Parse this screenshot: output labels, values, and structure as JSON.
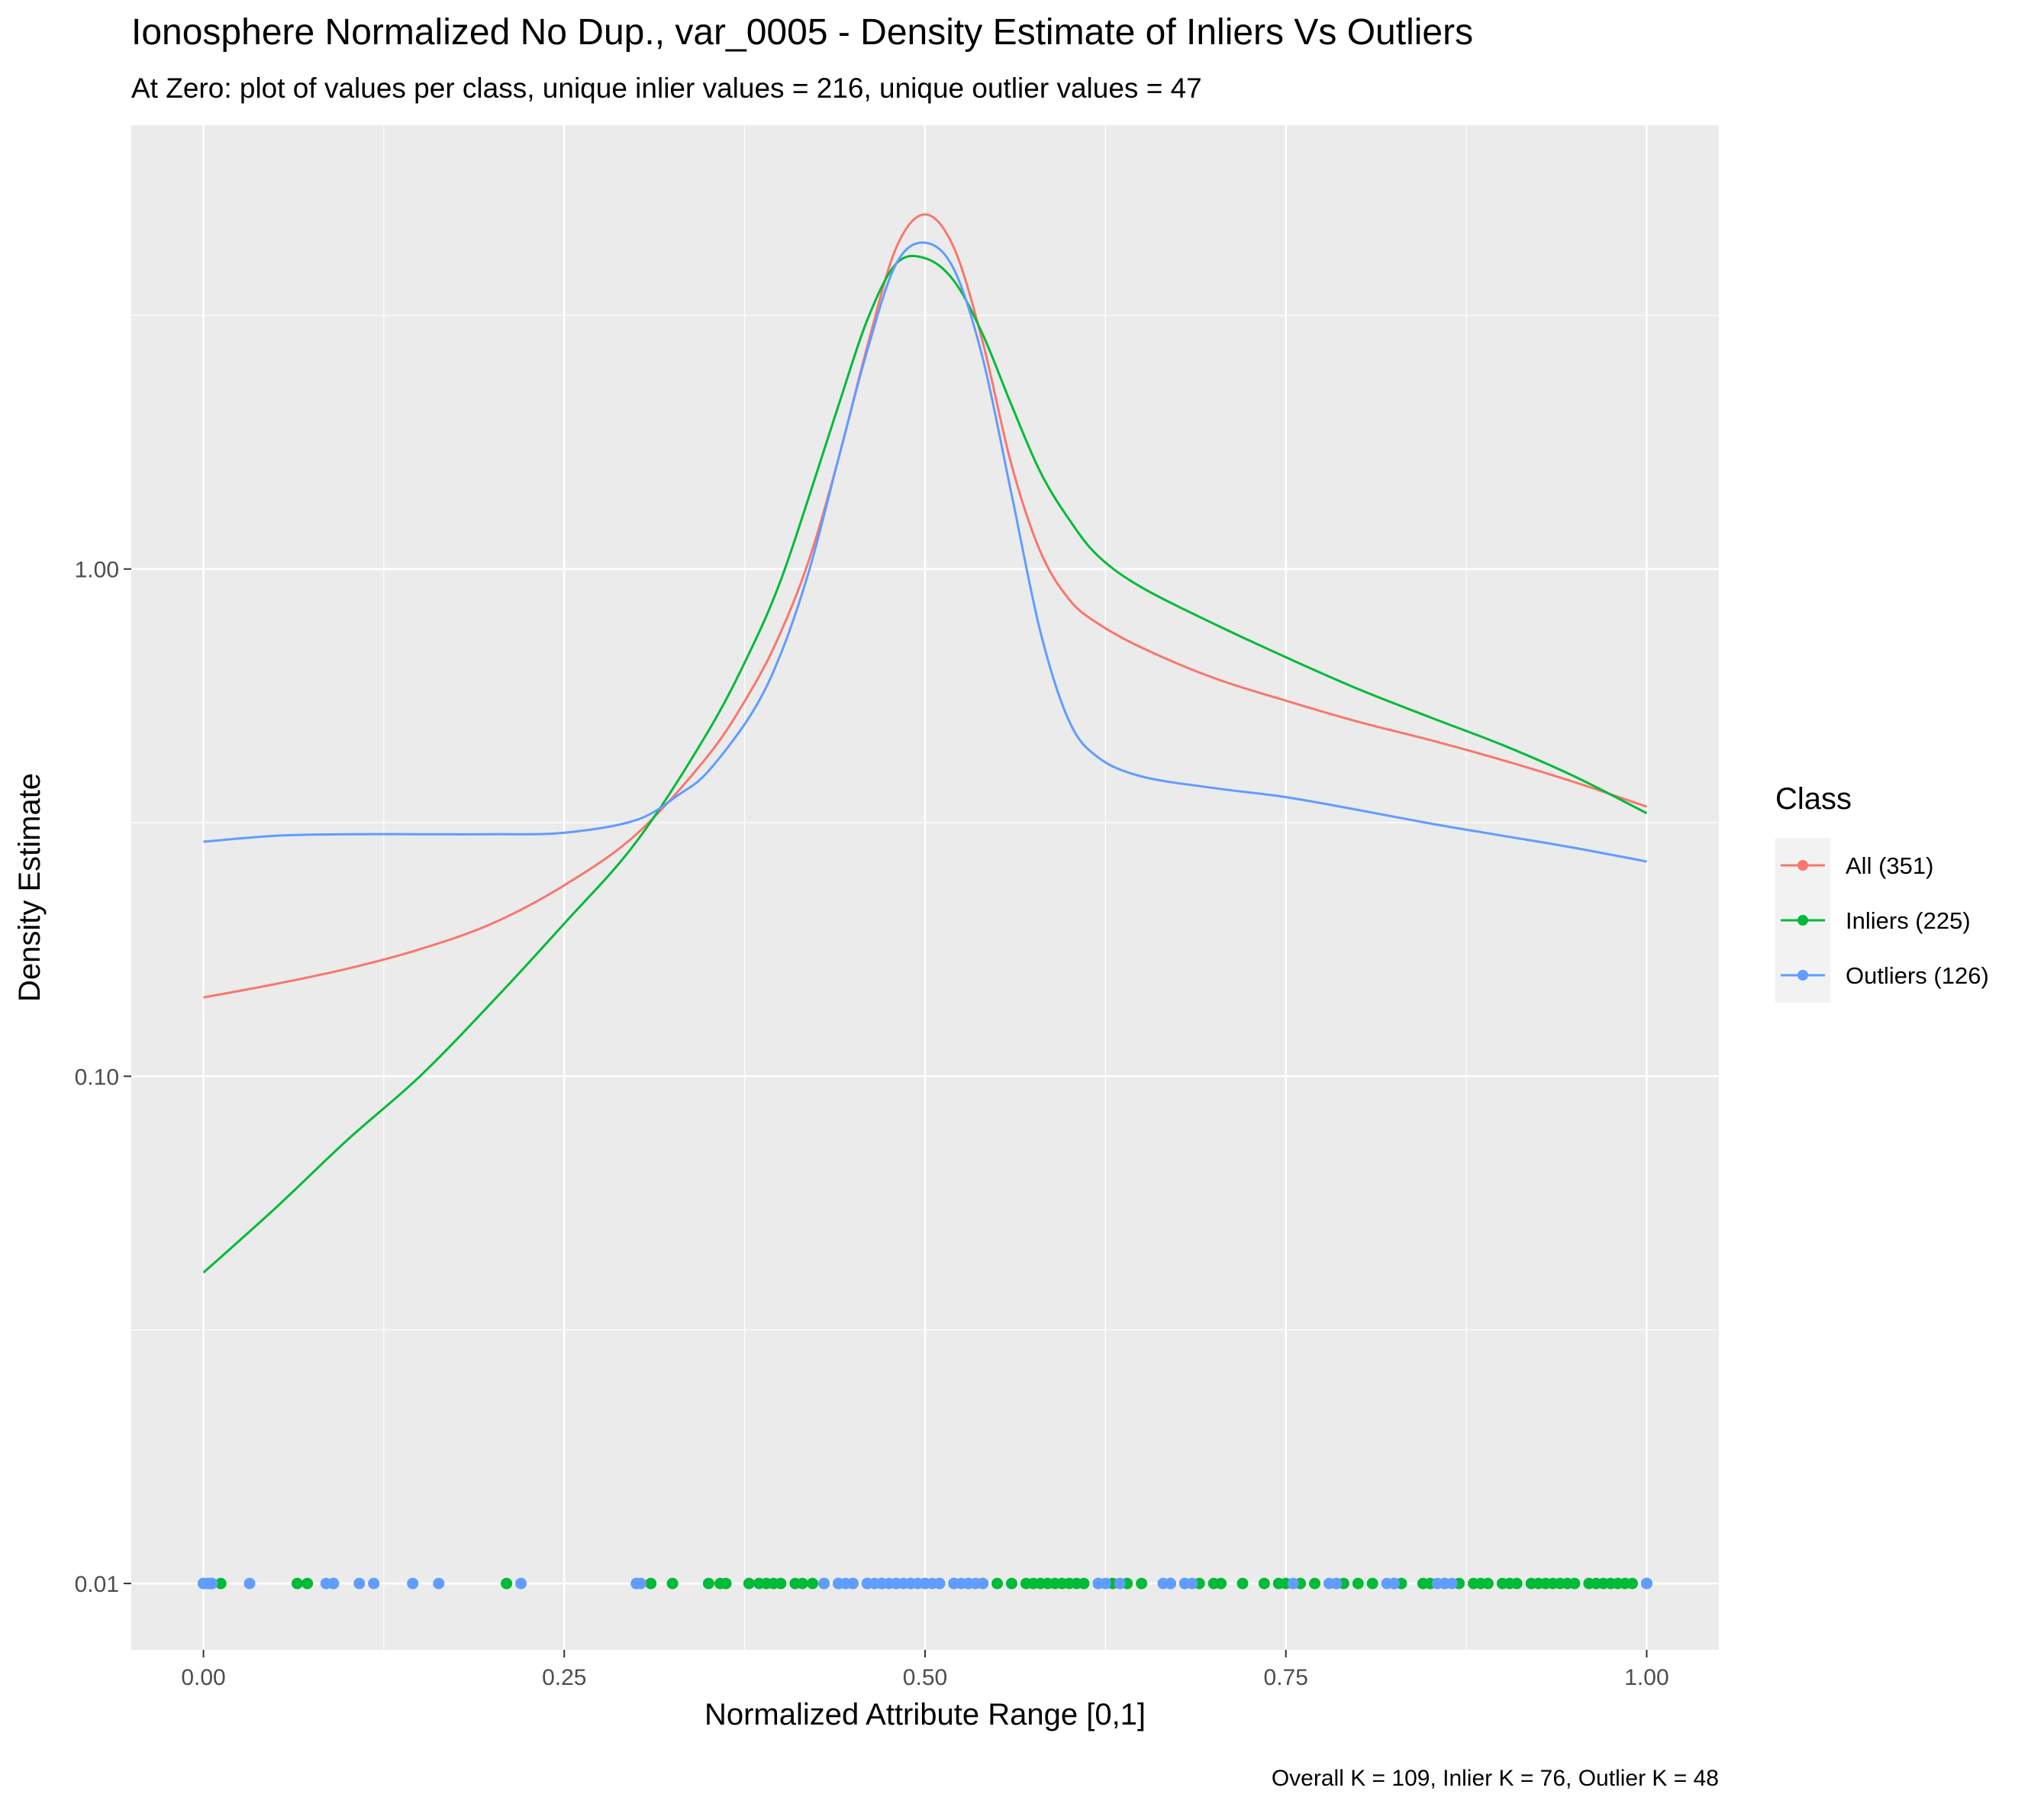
{
  "chart_data": {
    "type": "line",
    "title": "Ionosphere Normalized No Dup., var_0005 - Density Estimate of Inliers Vs Outliers",
    "subtitle": "At Zero: plot of values per class, unique inlier values = 216, unique outlier values = 47",
    "xlabel": "Normalized Attribute Range [0,1]",
    "ylabel": "Density Estimate",
    "caption": "Overall K = 109, Inlier K = 76, Outlier K = 48",
    "y_scale": "log10",
    "xlim": [
      -0.05,
      1.05
    ],
    "ylim": [
      0.0074,
      7.5
    ],
    "x_ticks": [
      0,
      0.25,
      0.5,
      0.75,
      1
    ],
    "x_tick_labels": [
      "0.00",
      "0.25",
      "0.50",
      "0.75",
      "1.00"
    ],
    "y_ticks": [
      0.01,
      0.1,
      1
    ],
    "y_tick_labels": [
      "0.01",
      "0.10",
      "1.00"
    ],
    "grid": true,
    "legend": {
      "title": "Class",
      "placement": "right",
      "entries": [
        "All (351)",
        "Inliers (225)",
        "Outliers (126)"
      ]
    },
    "colors": {
      "all": "#F8766D",
      "inliers": "#00BA38",
      "outliers": "#619CFF",
      "panel_bg": "#EBEBEB",
      "grid": "#FFFFFF"
    },
    "series": [
      {
        "name": "All (351)",
        "color": "#F8766D",
        "x": [
          0,
          0.05,
          0.1,
          0.15,
          0.2,
          0.25,
          0.3,
          0.35,
          0.38,
          0.4,
          0.42,
          0.44,
          0.46,
          0.48,
          0.5,
          0.52,
          0.54,
          0.56,
          0.58,
          0.6,
          0.62,
          0.65,
          0.7,
          0.75,
          0.8,
          0.85,
          0.9,
          0.95,
          1.0
        ],
        "y": [
          0.143,
          0.152,
          0.163,
          0.178,
          0.2,
          0.238,
          0.3,
          0.43,
          0.58,
          0.75,
          1.05,
          1.65,
          2.75,
          4.3,
          5.0,
          4.3,
          2.8,
          1.6,
          1.08,
          0.87,
          0.78,
          0.7,
          0.61,
          0.55,
          0.5,
          0.46,
          0.42,
          0.38,
          0.34
        ]
      },
      {
        "name": "Inliers (225)",
        "color": "#00BA38",
        "x": [
          0,
          0.05,
          0.1,
          0.15,
          0.2,
          0.25,
          0.3,
          0.35,
          0.38,
          0.4,
          0.42,
          0.44,
          0.46,
          0.48,
          0.5,
          0.52,
          0.54,
          0.56,
          0.58,
          0.6,
          0.62,
          0.65,
          0.7,
          0.75,
          0.8,
          0.85,
          0.9,
          0.95,
          1.0
        ],
        "y": [
          0.041,
          0.055,
          0.075,
          0.1,
          0.14,
          0.2,
          0.29,
          0.48,
          0.7,
          0.95,
          1.4,
          2.1,
          3.1,
          4.0,
          4.1,
          3.7,
          2.9,
          2.1,
          1.55,
          1.25,
          1.06,
          0.92,
          0.78,
          0.67,
          0.58,
          0.51,
          0.45,
          0.39,
          0.33
        ]
      },
      {
        "name": "Outliers (126)",
        "color": "#619CFF",
        "x": [
          0,
          0.05,
          0.1,
          0.15,
          0.2,
          0.25,
          0.3,
          0.33,
          0.35,
          0.38,
          0.4,
          0.42,
          0.44,
          0.46,
          0.48,
          0.5,
          0.52,
          0.54,
          0.56,
          0.58,
          0.6,
          0.62,
          0.65,
          0.7,
          0.75,
          0.8,
          0.85,
          0.9,
          0.95,
          1.0
        ],
        "y": [
          0.29,
          0.298,
          0.3,
          0.3,
          0.3,
          0.302,
          0.32,
          0.36,
          0.4,
          0.52,
          0.68,
          1.0,
          1.65,
          2.7,
          4.0,
          4.4,
          3.9,
          2.6,
          1.4,
          0.75,
          0.5,
          0.425,
          0.39,
          0.37,
          0.355,
          0.335,
          0.315,
          0.298,
          0.282,
          0.265
        ]
      }
    ],
    "rug": {
      "y": 0.01,
      "inliers": [
        0,
        0.005,
        0.012,
        0.065,
        0.072,
        0.09,
        0.21,
        0.3,
        0.31,
        0.325,
        0.35,
        0.358,
        0.362,
        0.378,
        0.385,
        0.39,
        0.395,
        0.4,
        0.41,
        0.415,
        0.422,
        0.43,
        0.44,
        0.45,
        0.46,
        0.47,
        0.48,
        0.49,
        0.5,
        0.51,
        0.52,
        0.53,
        0.54,
        0.55,
        0.56,
        0.57,
        0.575,
        0.58,
        0.585,
        0.59,
        0.595,
        0.6,
        0.605,
        0.61,
        0.62,
        0.63,
        0.64,
        0.65,
        0.67,
        0.68,
        0.69,
        0.7,
        0.705,
        0.72,
        0.735,
        0.745,
        0.75,
        0.76,
        0.77,
        0.785,
        0.79,
        0.8,
        0.81,
        0.825,
        0.83,
        0.845,
        0.85,
        0.86,
        0.87,
        0.88,
        0.885,
        0.89,
        0.9,
        0.905,
        0.91,
        0.92,
        0.925,
        0.93,
        0.935,
        0.94,
        0.945,
        0.95,
        0.96,
        0.965,
        0.97,
        0.975,
        0.98,
        0.985,
        0.99,
        1.0
      ],
      "outliers": [
        0,
        0.003,
        0.006,
        0.032,
        0.085,
        0.09,
        0.108,
        0.118,
        0.145,
        0.163,
        0.22,
        0.3,
        0.303,
        0.43,
        0.44,
        0.445,
        0.45,
        0.46,
        0.465,
        0.47,
        0.475,
        0.48,
        0.485,
        0.49,
        0.495,
        0.5,
        0.505,
        0.51,
        0.52,
        0.525,
        0.53,
        0.535,
        0.54,
        0.62,
        0.625,
        0.635,
        0.665,
        0.67,
        0.68,
        0.685,
        0.755,
        0.78,
        0.785,
        0.82,
        0.825,
        0.855,
        0.86,
        0.865,
        1.0
      ]
    }
  }
}
